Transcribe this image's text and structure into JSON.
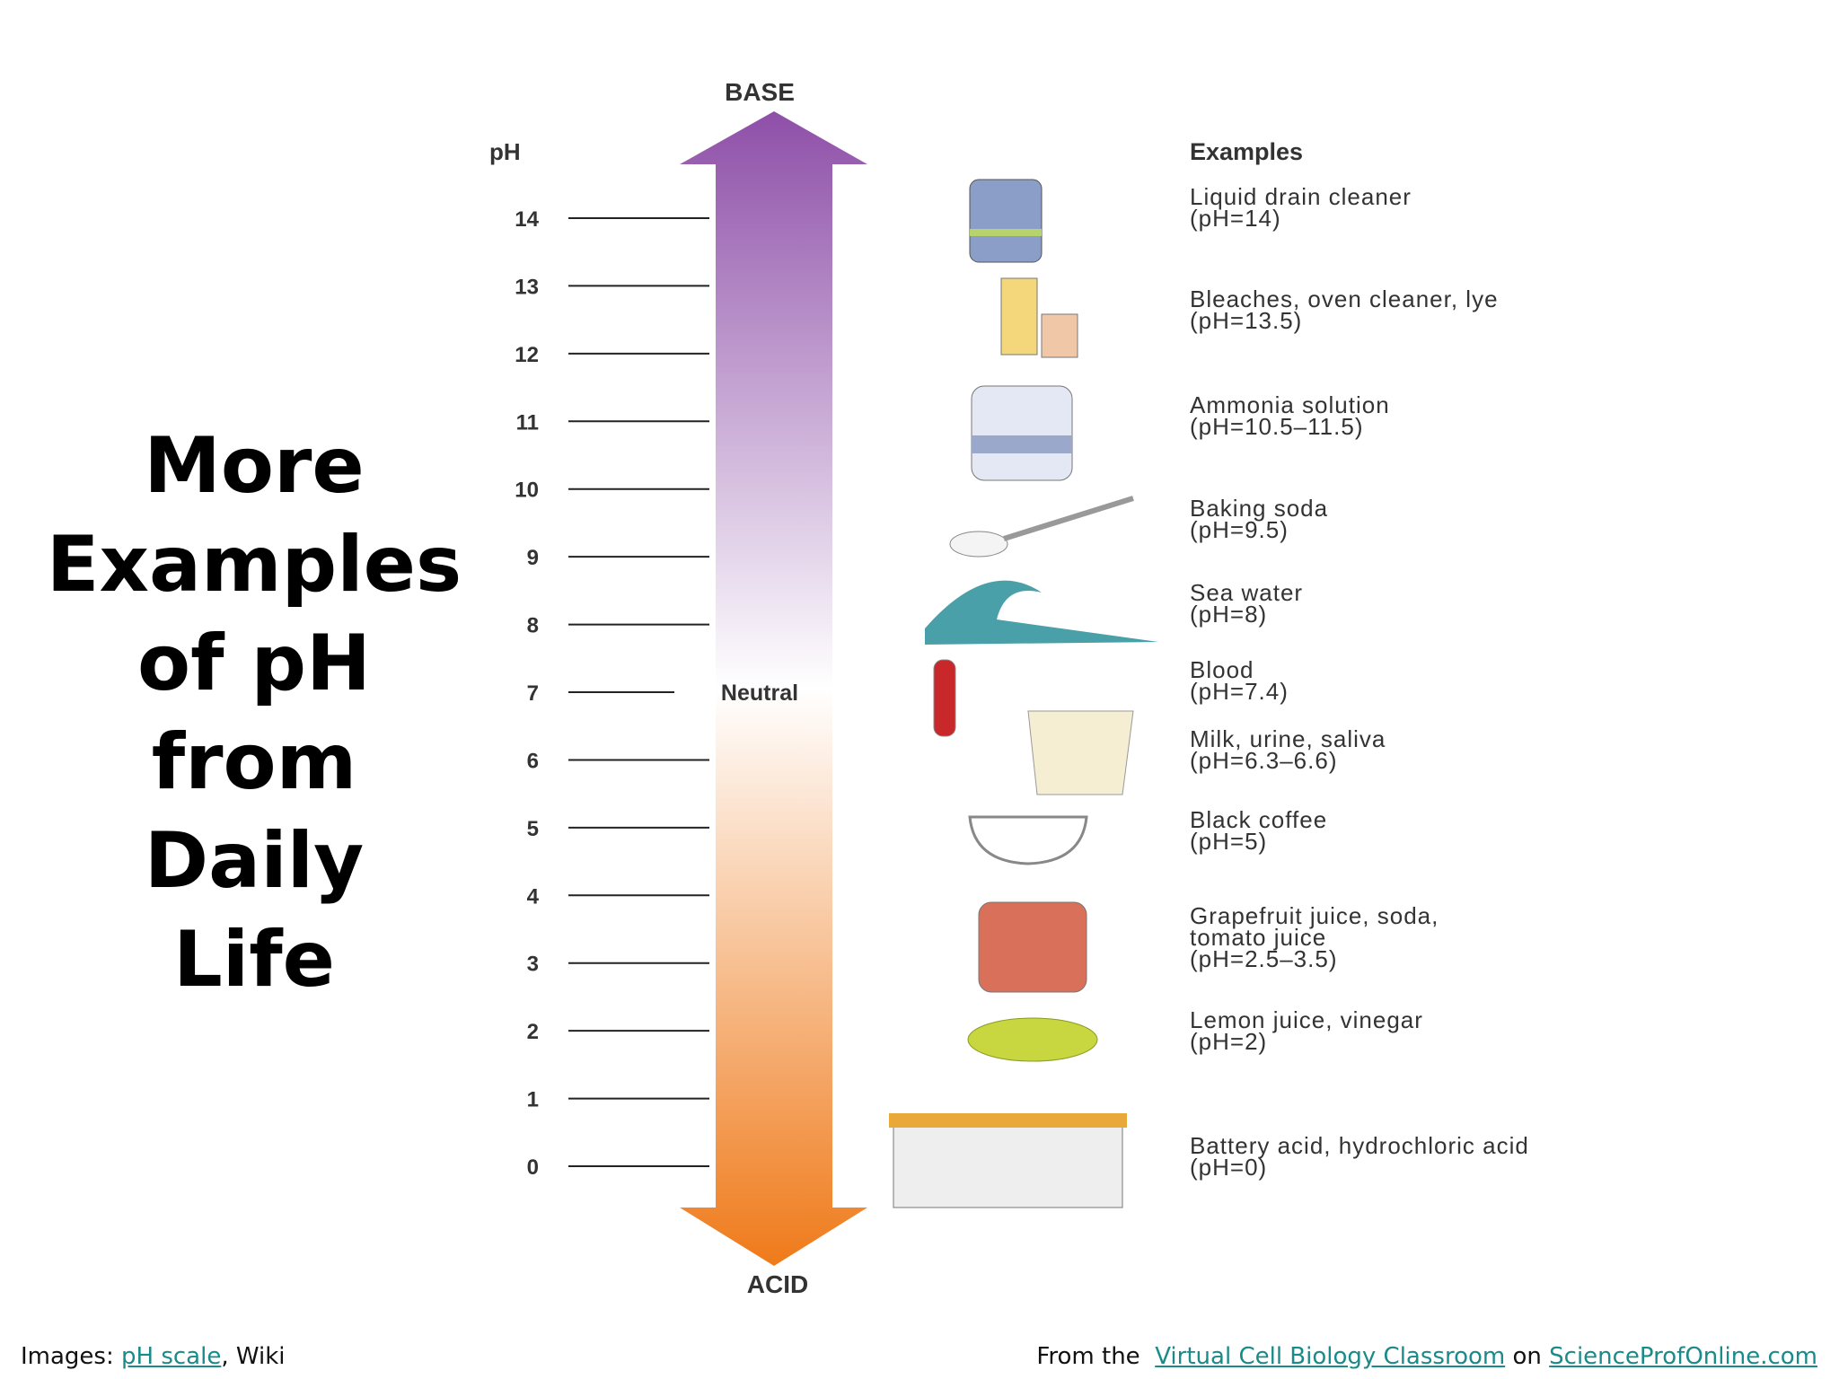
{
  "title": [
    "More",
    "Examples",
    "of pH",
    "from",
    "Daily",
    "Life"
  ],
  "diagram": {
    "top_label": "BASE",
    "bottom_label": "ACID",
    "axis_label": "pH",
    "ticks": [
      14,
      13,
      12,
      11,
      10,
      9,
      8,
      7,
      6,
      5,
      4,
      3,
      2,
      1,
      0
    ],
    "neutral_label": "Neutral",
    "examples_header": "Examples",
    "examples": [
      {
        "lines": [
          "Liquid drain cleaner",
          "(pH=14)"
        ]
      },
      {
        "lines": [
          "Bleaches, oven cleaner, lye",
          "(pH=13.5)"
        ]
      },
      {
        "lines": [
          "Ammonia solution",
          "(pH=10.5–11.5)"
        ]
      },
      {
        "lines": [
          "Baking soda",
          "(pH=9.5)"
        ]
      },
      {
        "lines": [
          "Sea water",
          "(pH=8)"
        ]
      },
      {
        "lines": [
          "Blood",
          "(pH=7.4)"
        ]
      },
      {
        "lines": [
          "Milk, urine, saliva",
          "(pH=6.3–6.6)"
        ]
      },
      {
        "lines": [
          "Black coffee",
          "(pH=5)"
        ]
      },
      {
        "lines": [
          "Grapefruit juice, soda,",
          "tomato juice",
          "(pH=2.5–3.5)"
        ]
      },
      {
        "lines": [
          "Lemon juice, vinegar",
          "(pH=2)"
        ]
      },
      {
        "lines": [
          "Battery acid, hydrochloric acid",
          "(pH=0)"
        ]
      }
    ]
  },
  "footer": {
    "left": {
      "prefix": "Images:",
      "link": "pH scale",
      "suffix": ", Wiki"
    },
    "right": {
      "prefix": "From the",
      "link1": "Virtual Cell Biology Classroom",
      "middle": "on",
      "link2": "ScienceProfOnline.com"
    }
  }
}
